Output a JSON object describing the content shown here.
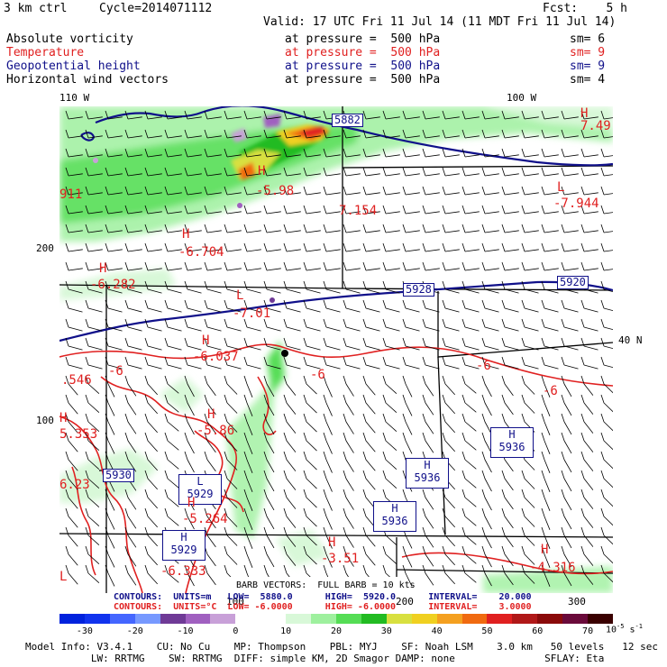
{
  "header": {
    "run": "3 km ctrl",
    "cycle": "Cycle=2014071112",
    "fcst": "Fcst:    5 h",
    "valid": "Valid: 17 UTC Fri 11 Jul 14 (11 MDT Fri 11 Jul 14)"
  },
  "fields": [
    {
      "name": "Absolute vorticity",
      "level": "at pressure =  500 hPa",
      "sm": "sm= 6",
      "color": "#000000"
    },
    {
      "name": "Temperature",
      "level": "at pressure =  500 hPa",
      "sm": "sm= 9",
      "color": "#e02020"
    },
    {
      "name": "Geopotential height",
      "level": "at pressure =  500 hPa",
      "sm": "sm= 9",
      "color": "#10108a"
    },
    {
      "name": "Horizontal wind vectors",
      "level": "at pressure =  500 hPa",
      "sm": "sm= 4",
      "color": "#000000"
    }
  ],
  "axes": {
    "lon_left": "110 W",
    "lon_right": "100 W",
    "lat_right": "40 N",
    "y_ticks": [
      "200",
      "100"
    ],
    "x_ticks": [
      "100",
      "200",
      "300"
    ]
  },
  "map": {
    "height_labels": [
      "5882",
      "5928",
      "5920",
      "5930",
      "5929",
      "5936",
      "5936",
      "5936",
      "5929"
    ],
    "temp_labels": [
      "-5.98",
      "7.154",
      "-7.944",
      "7.49",
      "911",
      "-6.704",
      "-6.282",
      "-7.01",
      "-6.037",
      "-6",
      "-6",
      "-6",
      ".546",
      "-6",
      "5.353",
      "-5.86",
      "6.23",
      "-5.264",
      "-6.333",
      "-3.51",
      "-4.316"
    ],
    "hl_letters": [
      "H",
      "H",
      "L",
      "H",
      "H",
      "L",
      "H",
      "H",
      "H",
      "H",
      "H",
      "H",
      "L",
      "H",
      "H",
      "H",
      "H",
      "L",
      "L"
    ]
  },
  "footer": {
    "barb_line": "BARB VECTORS:  FULL BARB = 10 kts",
    "contours_height": "CONTOURS:  UNITS=m   LOW=  5880.0      HIGH=  5920.0      INTERVAL=    20.000",
    "contours_temp": "CONTOURS:  UNITS=°C  LOW= -6.0000      HIGH= -6.0000      INTERVAL=    3.0000",
    "colorbar_ticks": [
      "-30",
      "-20",
      "-10",
      "0",
      "10",
      "20",
      "30",
      "40",
      "50",
      "60",
      "70"
    ],
    "colorbar_unit": "10",
    "colorbar_exp": "-5",
    "colorbar_unit_tail": " s",
    "colorbar_unit_tail_exp": "-1",
    "colorbar_colors": [
      "#0022dd",
      "#1133ee",
      "#4466ff",
      "#7799ff",
      "#6f3a96",
      "#a060c0",
      "#c8a0d8",
      "#ffffff",
      "#ffffff",
      "#d8f8d8",
      "#9ef09e",
      "#55dd55",
      "#22bb22",
      "#d8e040",
      "#f0d020",
      "#f4a020",
      "#f06a10",
      "#e02020",
      "#b01818",
      "#8a0a0a",
      "#6a0a3a",
      "#3a0000"
    ],
    "model_info_1": "Model Info: V3.4.1    CU: No Cu    MP: Thompson    PBL: MYJ    SF: Noah LSM    3.0 km   50 levels   12 sec",
    "model_info_2": "           LW: RRTMG    SW: RRTMG  DIFF: simple KM, 2D Smagor DAMP: none               SFLAY: Eta"
  }
}
